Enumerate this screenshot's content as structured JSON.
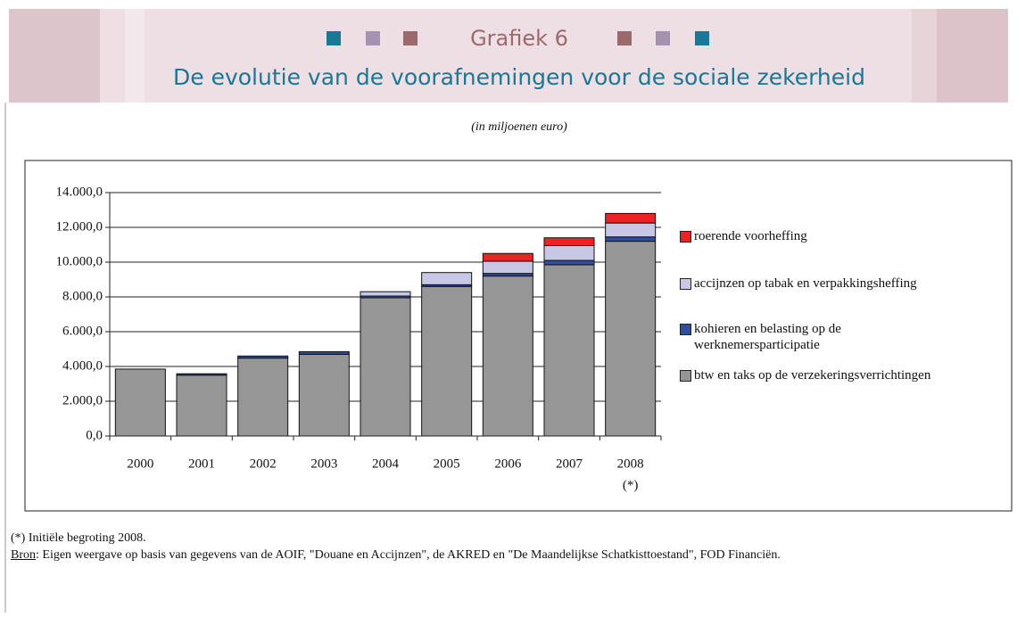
{
  "chart_data": {
    "type": "stacked_bar",
    "label": "Grafiek 6",
    "title": "De evolutie van de voorafnemingen voor de sociale zekerheid",
    "subtitle": "(in miljoenen euro)",
    "categories": [
      "2000",
      "2001",
      "2002",
      "2003",
      "2004",
      "2005",
      "2006",
      "2007",
      "2008"
    ],
    "category_notes": [
      null,
      null,
      null,
      null,
      null,
      null,
      null,
      null,
      "(*)"
    ],
    "series": [
      {
        "name": "btw en taks op de verzekeringsverrichtingen",
        "color": "#969696",
        "values": [
          3850,
          3500,
          4480,
          4700,
          7950,
          8600,
          9200,
          9850,
          11200
        ]
      },
      {
        "name": "kohieren en belasting op de werknemersparticipatie",
        "color": "#2e4ea0",
        "values": [
          0,
          80,
          120,
          150,
          100,
          100,
          150,
          250,
          250
        ]
      },
      {
        "name": "accijnzen op tabak en verpakkingsheffing",
        "color": "#c8c8e6",
        "values": [
          0,
          0,
          0,
          0,
          250,
          700,
          700,
          850,
          800
        ]
      },
      {
        "name": "roerende voorheffing",
        "color": "#ee2222",
        "values": [
          0,
          0,
          0,
          0,
          0,
          0,
          450,
          450,
          550
        ]
      }
    ],
    "ylim": [
      0,
      14000
    ],
    "yticks": [
      {
        "value": 0,
        "label": "0,0"
      },
      {
        "value": 2000,
        "label": "2.000,0"
      },
      {
        "value": 4000,
        "label": "4.000,0"
      },
      {
        "value": 6000,
        "label": "6.000,0"
      },
      {
        "value": 8000,
        "label": "8.000,0"
      },
      {
        "value": 10000,
        "label": "10.000,0"
      },
      {
        "value": 12000,
        "label": "12.000,0"
      },
      {
        "value": 14000,
        "label": "14.000,0"
      }
    ],
    "grid": true
  },
  "footnote": "(*) Initiële begroting 2008.",
  "source_label": "Bron",
  "source_text": ": Eigen weergave op basis van gegevens van de AOIF, \"Douane en Accijnzen\", de AKRED en \"De Maandelijkse Schatkisttoestand\", FOD Financiën."
}
